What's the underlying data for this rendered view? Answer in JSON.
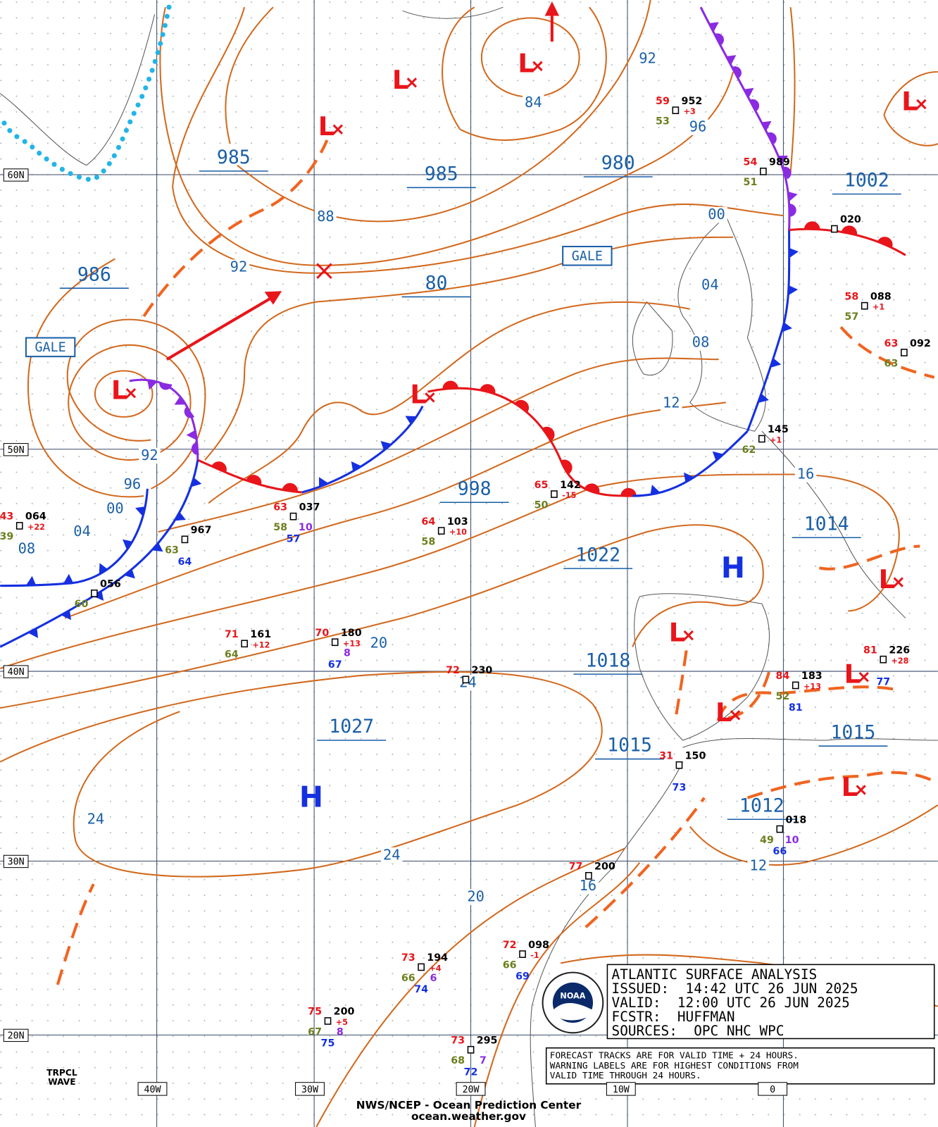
{
  "grid": {
    "lat": [
      "60N",
      "50N",
      "40N",
      "30N",
      "20N"
    ],
    "lon": [
      "40W",
      "30W",
      "20W",
      "10W",
      "0"
    ]
  },
  "pressure_labels": [
    "985",
    "985",
    "980",
    "1002",
    "986",
    "80",
    "998",
    "1014",
    "1022",
    "1018",
    "1027",
    "1015",
    "1015",
    "1012"
  ],
  "isobar_labels": [
    "92",
    "84",
    "96",
    "88",
    "92",
    "00",
    "04",
    "08",
    "12",
    "16",
    "92",
    "96",
    "00",
    "04",
    "08",
    "20",
    "24",
    "24",
    "24",
    "20",
    "16",
    "12"
  ],
  "gale": [
    "GALE",
    "GALE"
  ],
  "centers": [
    "L",
    "L",
    "L",
    "L",
    "L",
    "L",
    "L",
    "L",
    "L",
    "L",
    "L",
    "H",
    "H"
  ],
  "stations": [
    {
      "temp": "59",
      "dew": "53",
      "pressure": "952",
      "tendency": "+3"
    },
    {
      "temp": "54",
      "dew": "51",
      "pressure": "989"
    },
    {
      "pressure": "020"
    },
    {
      "temp": "58",
      "dew": "57",
      "pressure": "088",
      "tendency": "+1"
    },
    {
      "temp": "63",
      "dew": "63",
      "pressure": "092"
    },
    {
      "dew": "62",
      "pressure": "145",
      "tendency": "+1"
    },
    {
      "temp": "65",
      "dew": "50",
      "pressure": "142",
      "tendency": "-15"
    },
    {
      "temp": "64",
      "dew": "58",
      "pressure": "103",
      "tendency": "+10"
    },
    {
      "temp": "63",
      "dew": "58",
      "pressure": "037",
      "sea": "10",
      "wind": "57"
    },
    {
      "temp": "43",
      "dew": "39",
      "pressure": "064",
      "tendency": "+22"
    },
    {
      "dew": "63",
      "pressure": "967",
      "wind": "64"
    },
    {
      "dew": "60",
      "pressure": "056"
    },
    {
      "temp": "71",
      "dew": "64",
      "pressure": "161",
      "tendency": "+12"
    },
    {
      "temp": "70",
      "pressure": "180",
      "tendency": "+13",
      "sea": "8",
      "wind": "67"
    },
    {
      "temp": "84",
      "dew": "52",
      "pressure": "183",
      "tendency": "+13",
      "wind": "81"
    },
    {
      "temp": "81",
      "pressure": "226",
      "tendency": "+28",
      "wind": "77"
    },
    {
      "temp": "31",
      "pressure": "150",
      "wind": "73"
    },
    {
      "dew": "49",
      "pressure": "018",
      "sea": "10",
      "wind": "66"
    },
    {
      "temp": "77",
      "pressure": "200"
    },
    {
      "temp": "73",
      "dew": "66",
      "pressure": "194",
      "tendency": "+4",
      "sea": "6",
      "wind": "74"
    },
    {
      "temp": "72",
      "dew": "66",
      "pressure": "098",
      "tendency": "-1",
      "wind": "69"
    },
    {
      "temp": "75",
      "dew": "67",
      "pressure": "200",
      "tendency": "+5",
      "sea": "8",
      "wind": "75"
    },
    {
      "temp": "73",
      "dew": "68",
      "pressure": "295",
      "sea": "7",
      "wind": "72"
    },
    {
      "temp": "72",
      "pressure": "230"
    }
  ],
  "title_box": [
    "ATLANTIC SURFACE ANALYSIS",
    "ISSUED:  14:42 UTC 26 JUN 2025",
    "VALID:  12:00 UTC 26 JUN 2025",
    "FCSTR:  HUFFMAN",
    "SOURCES:  OPC NHC WPC"
  ],
  "notice": [
    "FORECAST TRACKS ARE FOR VALID TIME + 24 HOURS.",
    "WARNING LABELS ARE FOR HIGHEST CONDITIONS FROM",
    "VALID TIME THROUGH 24 HOURS."
  ],
  "footer": [
    "NWS/NCEP - Ocean Prediction Center",
    "ocean.weather.gov"
  ],
  "tropical_wave": [
    "TRPCL",
    "WAVE"
  ],
  "logo": "NOAA"
}
